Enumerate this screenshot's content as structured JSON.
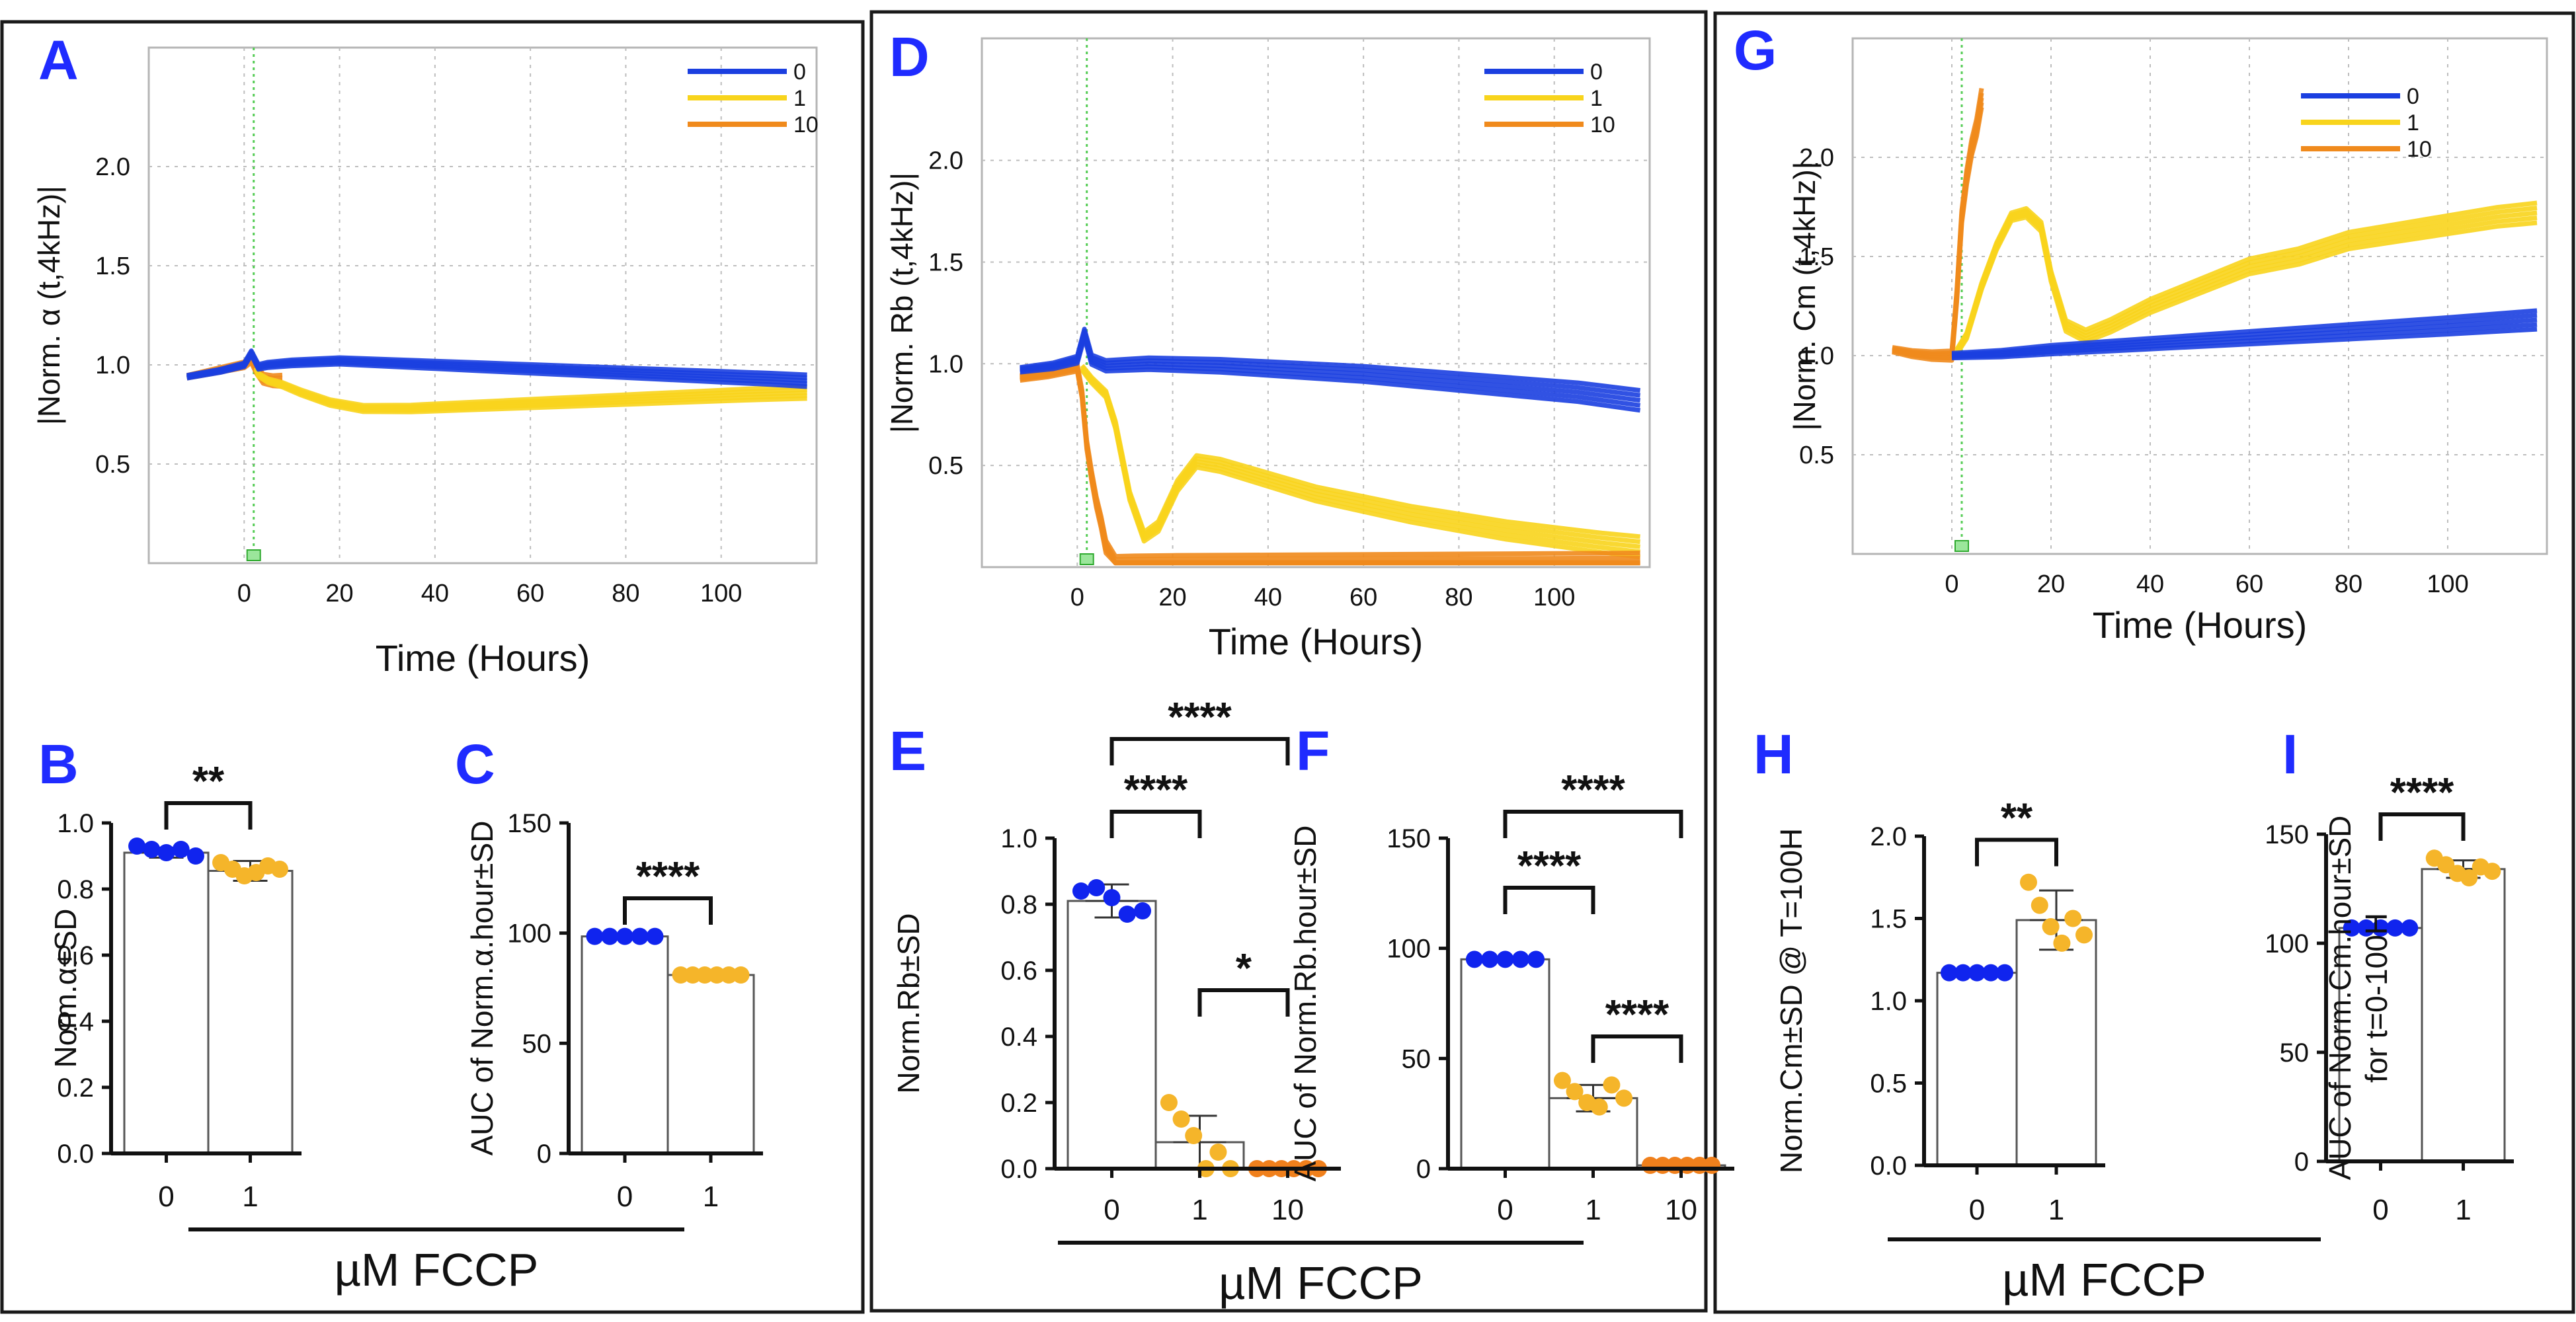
{
  "colors": {
    "c0": "#1b3fe0",
    "c1": "#f8d41c",
    "c10": "#f08a1c",
    "dot0": "#1024ee",
    "dot1": "#f5b52a",
    "dot10": "#f0801c",
    "letter": "#1f2bff"
  },
  "fccp_label": "µM FCCP",
  "chart_data": [
    {
      "id": "A",
      "type": "line",
      "letter": "A",
      "ylabel": "|Norm. α (t,4kHz)|",
      "xlabel": "Time (Hours)",
      "xlim": [
        -20,
        120
      ],
      "ylim": [
        0,
        2.6
      ],
      "xticks": [
        0,
        20,
        40,
        60,
        80,
        100
      ],
      "yticks": [
        0.5,
        1.0,
        1.5,
        2.0
      ],
      "xtick_labels": [
        "0",
        "20",
        "40",
        "60",
        "80",
        "100"
      ],
      "ytick_labels": [
        "0.5",
        "1.0",
        "1.5",
        "2.0"
      ],
      "legend": [
        "0",
        "1",
        "10"
      ],
      "series": [
        {
          "name": "0",
          "color": "c0",
          "replicates": 5,
          "x": [
            -12,
            -5,
            0,
            1.5,
            3,
            5,
            10,
            20,
            30,
            40,
            50,
            60,
            70,
            80,
            90,
            100,
            110,
            118
          ],
          "y": [
            0.94,
            0.97,
            1.0,
            1.06,
            0.99,
            1.0,
            1.01,
            1.02,
            1.01,
            1.0,
            0.99,
            0.98,
            0.97,
            0.96,
            0.95,
            0.94,
            0.93,
            0.92
          ]
        },
        {
          "name": "1",
          "color": "c1",
          "replicates": 5,
          "x": [
            2.5,
            3,
            5,
            8,
            12,
            18,
            25,
            35,
            45,
            55,
            65,
            75,
            85,
            95,
            105,
            118
          ],
          "y": [
            0.98,
            0.95,
            0.92,
            0.9,
            0.86,
            0.81,
            0.78,
            0.78,
            0.79,
            0.8,
            0.81,
            0.82,
            0.83,
            0.84,
            0.85,
            0.86
          ]
        },
        {
          "name": "10",
          "color": "c10",
          "replicates": 5,
          "x": [
            -12,
            -8,
            -4,
            0,
            1.5,
            2.5,
            4,
            6,
            8
          ],
          "y": [
            0.94,
            0.96,
            0.98,
            1.0,
            1.03,
            0.98,
            0.93,
            0.92,
            0.92
          ]
        }
      ]
    },
    {
      "id": "D",
      "type": "line",
      "letter": "D",
      "ylabel": "|Norm. Rb (t,4kHz)|",
      "xlabel": "Time (Hours)",
      "xlim": [
        -20,
        120
      ],
      "ylim": [
        0,
        2.6
      ],
      "xticks": [
        0,
        20,
        40,
        60,
        80,
        100
      ],
      "yticks": [
        0.5,
        1.0,
        1.5,
        2.0
      ],
      "xtick_labels": [
        "0",
        "20",
        "40",
        "60",
        "80",
        "100"
      ],
      "ytick_labels": [
        "0.5",
        "1.0",
        "1.5",
        "2.0"
      ],
      "legend": [
        "0",
        "1",
        "10"
      ],
      "series": [
        {
          "name": "0",
          "color": "c0",
          "replicates": 5,
          "x": [
            -12,
            -5,
            0,
            1.5,
            3,
            6,
            15,
            30,
            45,
            60,
            75,
            90,
            105,
            118
          ],
          "y": [
            0.97,
            0.99,
            1.02,
            1.15,
            1.02,
            0.99,
            1.0,
            0.99,
            0.97,
            0.95,
            0.92,
            0.89,
            0.86,
            0.82
          ]
        },
        {
          "name": "1",
          "color": "c1",
          "replicates": 5,
          "x": [
            1,
            3,
            6,
            8,
            11,
            14,
            17,
            21,
            25,
            30,
            40,
            50,
            60,
            70,
            80,
            90,
            100,
            110,
            118
          ],
          "y": [
            0.98,
            0.92,
            0.85,
            0.7,
            0.35,
            0.15,
            0.2,
            0.4,
            0.52,
            0.5,
            0.43,
            0.36,
            0.31,
            0.26,
            0.22,
            0.18,
            0.15,
            0.12,
            0.1
          ]
        },
        {
          "name": "10",
          "color": "c10",
          "replicates": 5,
          "x": [
            -12,
            -6,
            0,
            1,
            2,
            3,
            4,
            5,
            6,
            8,
            12,
            20,
            40,
            60,
            80,
            100,
            118
          ],
          "y": [
            0.93,
            0.95,
            0.98,
            0.85,
            0.6,
            0.45,
            0.32,
            0.22,
            0.1,
            0.02,
            0.02,
            0.02,
            0.02,
            0.02,
            0.02,
            0.02,
            0.02
          ]
        }
      ]
    },
    {
      "id": "G",
      "type": "line",
      "letter": "G",
      "ylabel": "|Norm. Cm (t,4kHz)|",
      "xlabel": "Time (Hours)",
      "xlim": [
        -20,
        120
      ],
      "ylim": [
        0,
        2.6
      ],
      "xticks": [
        0,
        20,
        40,
        60,
        80,
        100
      ],
      "yticks": [
        0.5,
        1.0,
        1.5,
        2.0
      ],
      "xtick_labels": [
        "0",
        "20",
        "40",
        "60",
        "80",
        "100"
      ],
      "ytick_labels": [
        "0.5",
        "1.0",
        "1.5",
        "2.0"
      ],
      "legend": [
        "0",
        "1",
        "10"
      ],
      "series": [
        {
          "name": "0",
          "color": "c0",
          "replicates": 5,
          "x": [
            0,
            10,
            20,
            40,
            60,
            80,
            100,
            118
          ],
          "y": [
            1.0,
            1.01,
            1.03,
            1.06,
            1.09,
            1.12,
            1.15,
            1.18
          ]
        },
        {
          "name": "1",
          "color": "c1",
          "replicates": 5,
          "x": [
            1,
            3,
            6,
            9,
            12,
            15,
            18,
            20,
            23,
            27,
            32,
            40,
            50,
            60,
            70,
            80,
            90,
            100,
            110,
            118
          ],
          "y": [
            1.02,
            1.1,
            1.35,
            1.55,
            1.7,
            1.72,
            1.65,
            1.4,
            1.15,
            1.1,
            1.15,
            1.25,
            1.35,
            1.45,
            1.5,
            1.58,
            1.62,
            1.66,
            1.7,
            1.72
          ]
        },
        {
          "name": "10",
          "color": "c10",
          "replicates": 5,
          "x": [
            -12,
            -8,
            -4,
            0,
            1,
            2,
            3,
            4,
            5,
            6
          ],
          "y": [
            1.03,
            1.01,
            1.0,
            1.0,
            1.3,
            1.7,
            1.9,
            2.05,
            2.15,
            2.3
          ]
        }
      ]
    },
    {
      "id": "B",
      "type": "bar",
      "letter": "B",
      "ylabel": "Norm.α±SD",
      "ylim": [
        0,
        1.0
      ],
      "yticks": [
        0,
        0.2,
        0.4,
        0.6,
        0.8,
        1.0
      ],
      "ytick_labels": [
        "0.0",
        "0.2",
        "0.4",
        "0.6",
        "0.8",
        "1.0"
      ],
      "categories": [
        "0",
        "1"
      ],
      "values": [
        0.91,
        0.855
      ],
      "sd": [
        0.015,
        0.03
      ],
      "points": [
        [
          0.93,
          0.92,
          0.91,
          0.92,
          0.9
        ],
        [
          0.88,
          0.86,
          0.84,
          0.85,
          0.87,
          0.86
        ]
      ],
      "point_colors": [
        "dot0",
        "dot1"
      ],
      "sig": [
        {
          "from": 0,
          "to": 1,
          "label": "**"
        }
      ]
    },
    {
      "id": "C",
      "type": "bar",
      "letter": "C",
      "ylabel": "AUC of Norm.α.hour±SD",
      "ylim": [
        0,
        150
      ],
      "yticks": [
        0,
        50,
        100,
        150
      ],
      "ytick_labels": [
        "0",
        "50",
        "100",
        "150"
      ],
      "categories": [
        "0",
        "1"
      ],
      "values": [
        98.5,
        81
      ],
      "sd": [
        0.4,
        1.0
      ],
      "points": [
        [
          98.5,
          98.5,
          98.5,
          98.5,
          98.5
        ],
        [
          81,
          81,
          81,
          81,
          81,
          81
        ]
      ],
      "point_colors": [
        "dot0",
        "dot1"
      ],
      "sig": [
        {
          "from": 0,
          "to": 1,
          "label": "****"
        }
      ]
    },
    {
      "id": "E",
      "type": "bar",
      "letter": "E",
      "ylabel": "Norm.Rb±SD",
      "ylim": [
        0,
        1.0
      ],
      "yticks": [
        0,
        0.2,
        0.4,
        0.6,
        0.8,
        1.0
      ],
      "ytick_labels": [
        "0.0",
        "0.2",
        "0.4",
        "0.6",
        "0.8",
        "1.0"
      ],
      "categories": [
        "0",
        "1",
        "10"
      ],
      "values": [
        0.81,
        0.08,
        0.0
      ],
      "sd": [
        0.05,
        0.08,
        0.0
      ],
      "points": [
        [
          0.84,
          0.85,
          0.82,
          0.77,
          0.78
        ],
        [
          0.2,
          0.15,
          0.1,
          0.0,
          0.05,
          0.0
        ],
        [
          0,
          0,
          0,
          0,
          0,
          0
        ]
      ],
      "point_colors": [
        "dot0",
        "dot1",
        "dot10"
      ],
      "sig": [
        {
          "from": 0,
          "to": 2,
          "label": "****"
        },
        {
          "from": 0,
          "to": 1,
          "label": "****"
        },
        {
          "from": 1,
          "to": 2,
          "label": "*"
        }
      ]
    },
    {
      "id": "F",
      "type": "bar",
      "letter": "F",
      "ylabel": "AUC of Norm.Rb.hour±SD",
      "ylim": [
        0,
        150
      ],
      "yticks": [
        0,
        50,
        100,
        150
      ],
      "ytick_labels": [
        "0",
        "50",
        "100",
        "150"
      ],
      "categories": [
        "0",
        "1",
        "10"
      ],
      "values": [
        95,
        32,
        1.5
      ],
      "sd": [
        1.0,
        6,
        0.3
      ],
      "points": [
        [
          95,
          95,
          95,
          95,
          95
        ],
        [
          40,
          35,
          30,
          28,
          38,
          32
        ],
        [
          1.5,
          1.5,
          1.5,
          1.5,
          1.5,
          1.5
        ]
      ],
      "point_colors": [
        "dot0",
        "dot1",
        "dot10"
      ],
      "sig": [
        {
          "from": 0,
          "to": 2,
          "label": "****"
        },
        {
          "from": 0,
          "to": 1,
          "label": "****"
        },
        {
          "from": 1,
          "to": 2,
          "label": "****"
        }
      ]
    },
    {
      "id": "H",
      "type": "bar",
      "letter": "H",
      "ylabel": "Norm.Cm±SD @ T=100H",
      "ylim": [
        0,
        2.0
      ],
      "yticks": [
        0,
        0.5,
        1.0,
        1.5,
        2.0
      ],
      "ytick_labels": [
        "0.0",
        "0.5",
        "1.0",
        "1.5",
        "2.0"
      ],
      "categories": [
        "0",
        "1"
      ],
      "values": [
        1.17,
        1.49
      ],
      "sd": [
        0.01,
        0.18
      ],
      "points": [
        [
          1.17,
          1.17,
          1.17,
          1.17,
          1.17
        ],
        [
          1.72,
          1.58,
          1.45,
          1.35,
          1.5,
          1.4
        ]
      ],
      "point_colors": [
        "dot0",
        "dot1"
      ],
      "sig": [
        {
          "from": 0,
          "to": 1,
          "label": "**"
        }
      ]
    },
    {
      "id": "I",
      "type": "bar",
      "letter": "I",
      "ylabel": "AUC of Norm.Cm.hour±SD",
      "ylabel2": "for t=0-100H",
      "ylim": [
        0,
        150
      ],
      "yticks": [
        0,
        50,
        100,
        150
      ],
      "ytick_labels": [
        "0",
        "50",
        "100",
        "150"
      ],
      "categories": [
        "0",
        "1"
      ],
      "values": [
        107,
        134
      ],
      "sd": [
        0.5,
        4
      ],
      "points": [
        [
          107,
          107,
          107,
          107,
          107
        ],
        [
          139,
          136,
          132,
          130,
          135,
          133
        ]
      ],
      "point_colors": [
        "dot0",
        "dot1"
      ],
      "sig": [
        {
          "from": 0,
          "to": 1,
          "label": "****"
        }
      ]
    }
  ]
}
